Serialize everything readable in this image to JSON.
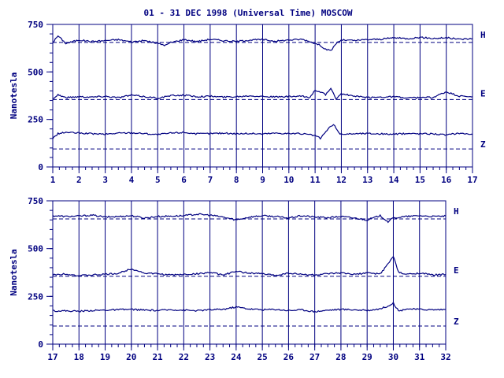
{
  "chart_data": [
    {
      "type": "line",
      "title": "01 - 31 DEC 1998 (Universal Time) MOSCOW",
      "ylabel": "Nanotesla",
      "xlim": [
        1,
        17
      ],
      "ylim": [
        0,
        750
      ],
      "yticks": [
        "0",
        "250",
        "500",
        "750"
      ],
      "xticks": [
        "1",
        "2",
        "3",
        "4",
        "5",
        "6",
        "7",
        "8",
        "9",
        "10",
        "11",
        "12",
        "13",
        "14",
        "15",
        "16",
        "17"
      ],
      "grid": true,
      "baselines": [
        {
          "component": "H",
          "value": 655
        },
        {
          "component": "E",
          "value": 355
        },
        {
          "component": "Z",
          "value": 95
        }
      ],
      "series": [
        {
          "name": "H",
          "x": [
            1,
            1.2,
            1.5,
            2,
            2.5,
            3,
            3.5,
            4,
            4.5,
            5,
            5.3,
            5.5,
            6,
            6.5,
            7,
            7.5,
            8,
            8.5,
            9,
            9.5,
            10,
            10.5,
            10.8,
            11,
            11.2,
            11.4,
            11.6,
            11.8,
            12,
            12.5,
            13,
            13.5,
            14,
            14.5,
            15,
            15.5,
            16,
            16.5,
            17
          ],
          "values": [
            655,
            690,
            650,
            668,
            660,
            665,
            670,
            658,
            665,
            650,
            640,
            655,
            670,
            660,
            672,
            665,
            660,
            668,
            670,
            662,
            668,
            672,
            660,
            650,
            640,
            620,
            610,
            650,
            668,
            665,
            670,
            672,
            680,
            675,
            682,
            676,
            680,
            672,
            675
          ]
        },
        {
          "name": "E",
          "x": [
            1,
            1.2,
            1.5,
            2,
            2.5,
            3,
            3.5,
            4,
            4.5,
            5,
            5.5,
            6,
            6.5,
            7,
            7.5,
            8,
            8.5,
            9,
            9.5,
            10,
            10.5,
            10.8,
            11,
            11.2,
            11.4,
            11.6,
            11.8,
            12,
            12.5,
            13,
            13.5,
            14,
            14.5,
            15,
            15.5,
            16,
            16.5,
            17
          ],
          "values": [
            360,
            380,
            365,
            370,
            368,
            372,
            365,
            378,
            370,
            362,
            375,
            378,
            370,
            372,
            368,
            370,
            375,
            372,
            368,
            370,
            372,
            365,
            405,
            395,
            380,
            410,
            360,
            385,
            372,
            365,
            368,
            370,
            362,
            365,
            366,
            395,
            372,
            370
          ]
        },
        {
          "name": "Z",
          "x": [
            1,
            1.2,
            1.5,
            2,
            2.5,
            3,
            3.5,
            4,
            4.5,
            5,
            5.5,
            6,
            6.5,
            7,
            7.5,
            8,
            8.5,
            9,
            9.5,
            10,
            10.5,
            11,
            11.2,
            11.5,
            11.7,
            11.9,
            12,
            12.5,
            13,
            13.5,
            14,
            14.5,
            15,
            15.5,
            16,
            16.5,
            17
          ],
          "values": [
            150,
            175,
            182,
            178,
            175,
            172,
            178,
            180,
            176,
            170,
            178,
            182,
            174,
            176,
            178,
            175,
            176,
            174,
            178,
            176,
            175,
            165,
            150,
            200,
            225,
            180,
            172,
            175,
            176,
            174,
            172,
            176,
            175,
            175,
            168,
            178,
            172
          ]
        }
      ]
    },
    {
      "type": "line",
      "ylabel": "Nanotesla",
      "xlim": [
        17,
        32
      ],
      "ylim": [
        0,
        750
      ],
      "yticks": [
        "0",
        "250",
        "500",
        "750"
      ],
      "xticks": [
        "17",
        "18",
        "19",
        "20",
        "21",
        "22",
        "23",
        "24",
        "25",
        "26",
        "27",
        "28",
        "29",
        "30",
        "31",
        "32"
      ],
      "grid": true,
      "baselines": [
        {
          "component": "H",
          "value": 655
        },
        {
          "component": "E",
          "value": 355
        },
        {
          "component": "Z",
          "value": 95
        }
      ],
      "series": [
        {
          "name": "H",
          "x": [
            17,
            17.5,
            18,
            18.5,
            19,
            19.5,
            20,
            20.5,
            21,
            21.5,
            22,
            22.5,
            23,
            23.5,
            24,
            24.5,
            25,
            25.5,
            26,
            26.5,
            27,
            27.5,
            28,
            28.5,
            29,
            29.5,
            29.8,
            30,
            30.5,
            31,
            31.5,
            32
          ],
          "values": [
            672,
            668,
            670,
            675,
            665,
            668,
            672,
            660,
            668,
            670,
            672,
            680,
            675,
            665,
            650,
            665,
            672,
            668,
            660,
            672,
            665,
            662,
            668,
            660,
            650,
            672,
            640,
            660,
            668,
            672,
            668,
            670
          ]
        },
        {
          "name": "E",
          "x": [
            17,
            17.5,
            18,
            18.5,
            19,
            19.5,
            20,
            20.5,
            21,
            21.5,
            22,
            22.5,
            23,
            23.5,
            24,
            24.5,
            25,
            25.5,
            26,
            26.5,
            27,
            27.5,
            28,
            28.5,
            29,
            29.5,
            29.8,
            30,
            30.2,
            30.5,
            31,
            31.5,
            32
          ],
          "values": [
            362,
            368,
            358,
            362,
            365,
            370,
            395,
            372,
            368,
            362,
            365,
            368,
            375,
            362,
            380,
            372,
            368,
            360,
            372,
            365,
            362,
            368,
            372,
            365,
            372,
            368,
            420,
            460,
            375,
            365,
            372,
            362,
            365
          ]
        },
        {
          "name": "Z",
          "x": [
            17,
            17.5,
            18,
            18.5,
            19,
            19.5,
            20,
            20.5,
            21,
            21.5,
            22,
            22.5,
            23,
            23.5,
            24,
            24.5,
            25,
            25.5,
            26,
            26.5,
            27,
            27.5,
            28,
            28.5,
            29,
            29.5,
            29.8,
            30,
            30.2,
            30.5,
            31,
            31.5,
            32
          ],
          "values": [
            175,
            174,
            172,
            176,
            178,
            180,
            182,
            178,
            176,
            180,
            178,
            175,
            180,
            182,
            195,
            184,
            180,
            182,
            176,
            180,
            170,
            178,
            182,
            180,
            176,
            185,
            200,
            215,
            172,
            185,
            182,
            180,
            182
          ]
        }
      ]
    }
  ]
}
